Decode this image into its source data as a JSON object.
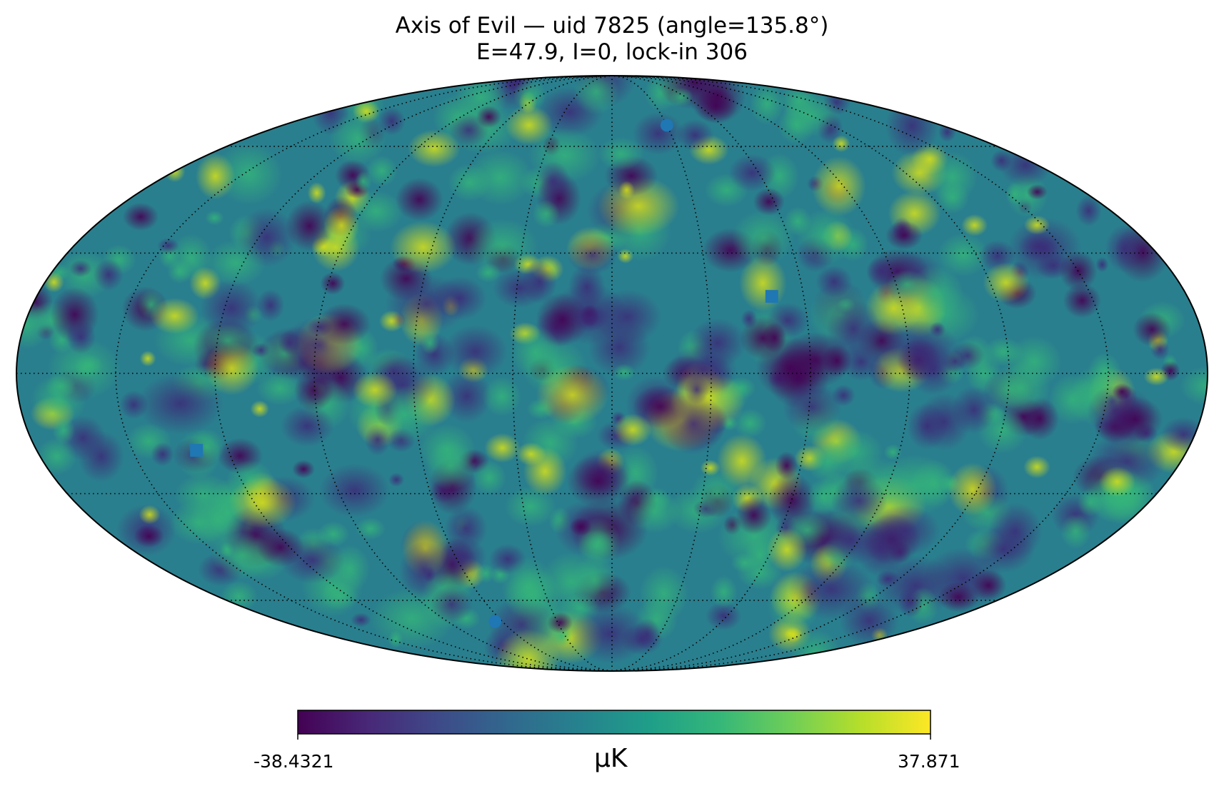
{
  "chart_data": {
    "type": "heatmap",
    "projection": "mollweide",
    "title": "Axis of Evil — uid 7825  (angle=135.8°)",
    "subtitle": "E=47.9, I=0, lock-in 306",
    "colormap": "viridis",
    "colorbar": {
      "min_label": "-38.4321",
      "max_label": "37.871",
      "min": -38.4321,
      "max": 37.871,
      "unit": "μK",
      "placement": "bottom"
    },
    "graticule": {
      "parallel_step_deg": 30,
      "meridian_step_deg": 30,
      "style": "dotted"
    },
    "markers": [
      {
        "shape": "circle",
        "lon_deg": -30,
        "lat_deg": 67,
        "color": "#1f77b4"
      },
      {
        "shape": "square",
        "lon_deg": -50,
        "lat_deg": 19,
        "color": "#1f77b4"
      },
      {
        "shape": "square",
        "lon_deg": 130,
        "lat_deg": -19,
        "color": "#1f77b4"
      },
      {
        "shape": "circle",
        "lon_deg": 64,
        "lat_deg": -67,
        "color": "#1f77b4"
      }
    ],
    "colors": {
      "viridis": [
        "#440154",
        "#482878",
        "#3e4a89",
        "#31688e",
        "#26828e",
        "#1f9e89",
        "#35b779",
        "#6ece58",
        "#b5de2b",
        "#fde725"
      ]
    }
  }
}
